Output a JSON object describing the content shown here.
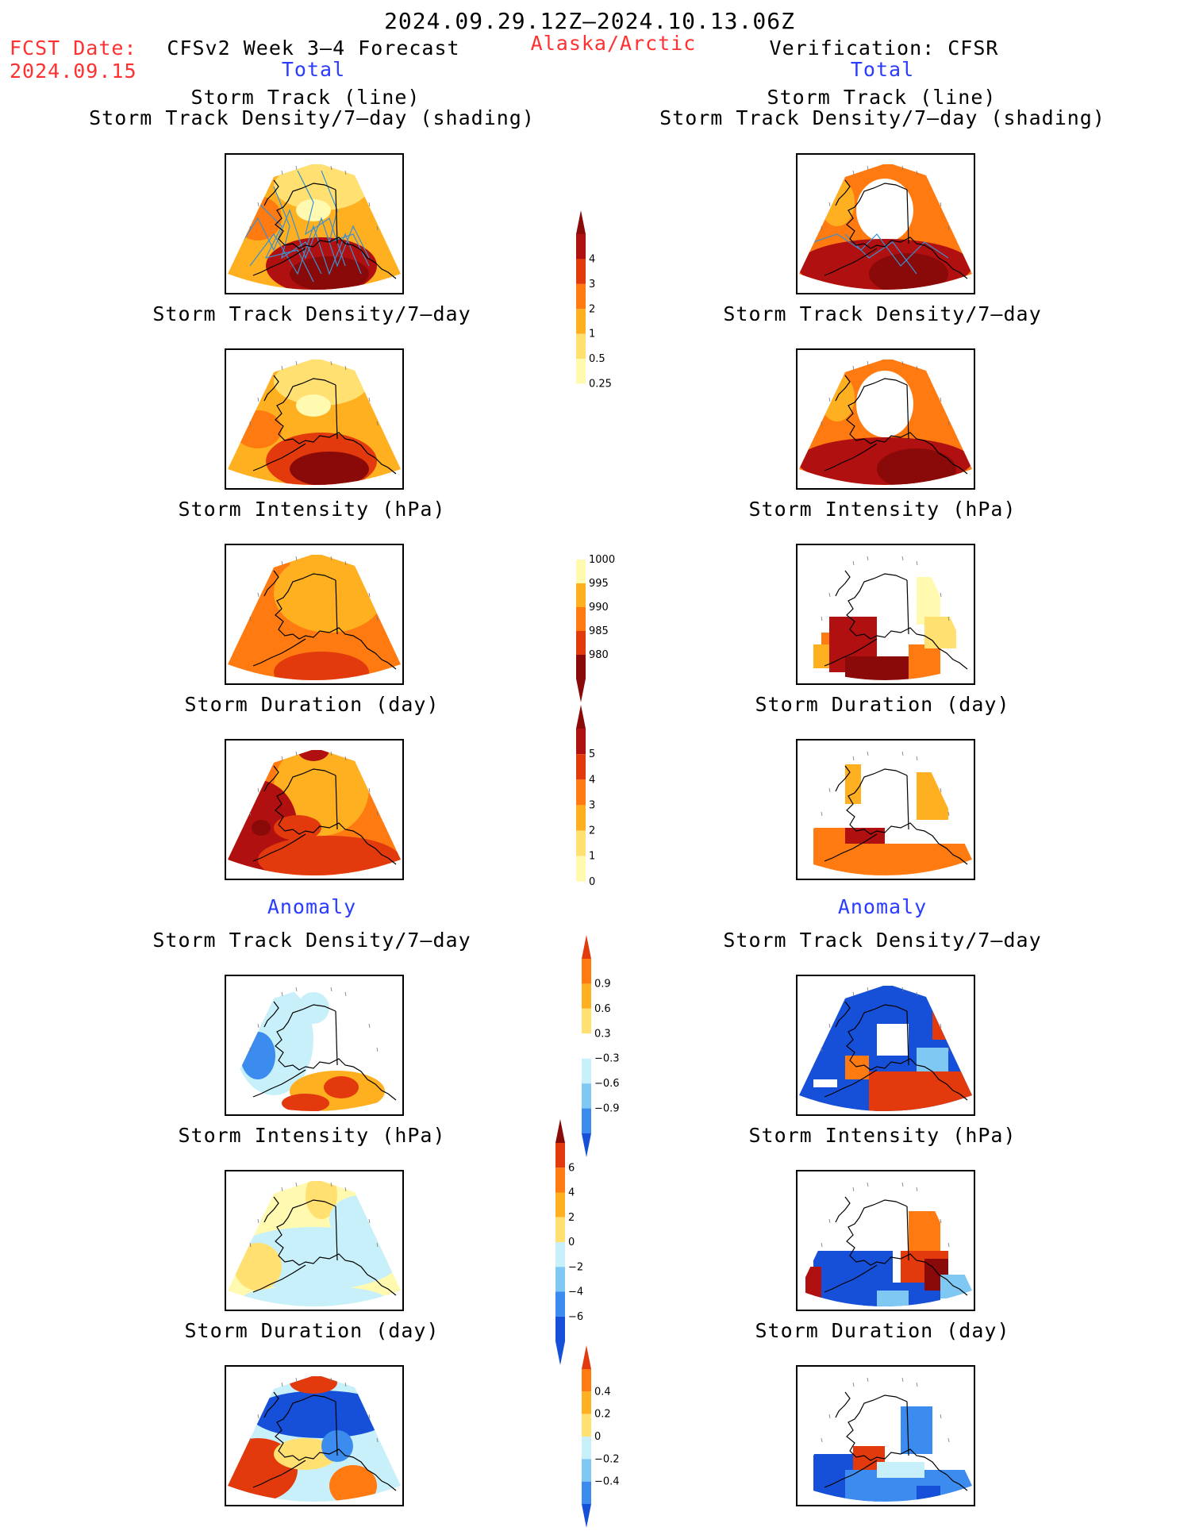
{
  "header": {
    "period": "2024.09.29.12Z–2024.10.13.06Z",
    "fcst_label": "FCST Date:",
    "fcst_date": "2024.09.15",
    "model": "CFSv2 Week 3–4 Forecast",
    "region": "Alaska/Arctic",
    "verification": "Verification: CFSR",
    "left_total": "Total",
    "right_total": "Total",
    "left_anomaly": "Anomaly",
    "right_anomaly": "Anomaly"
  },
  "titles": {
    "track_line": "Storm Track (line)",
    "track_shading": "Storm Track Density/7–day (shading)",
    "density": "Storm Track Density/7–day",
    "intensity": "Storm Intensity (hPa)",
    "duration": "Storm Duration (day)"
  },
  "colorbars": {
    "density_total": [
      "4",
      "3",
      "2",
      "1",
      "0.5",
      "0.25"
    ],
    "intensity_total": [
      "1000",
      "995",
      "990",
      "985",
      "980"
    ],
    "duration_total": [
      "5",
      "4",
      "3",
      "2",
      "1",
      "0"
    ],
    "density_anom": [
      "0.9",
      "0.6",
      "0.3",
      "−0.3",
      "−0.6",
      "−0.9"
    ],
    "intensity_anom": [
      "6",
      "4",
      "2",
      "0",
      "−2",
      "−4",
      "−6"
    ],
    "duration_anom": [
      "0.4",
      "0.2",
      "0",
      "−0.2",
      "−0.4"
    ]
  },
  "colors": {
    "warm": [
      "#fffab0",
      "#ffe070",
      "#ffb020",
      "#ff7a10",
      "#e23a0c",
      "#b01010",
      "#8a0a0a"
    ],
    "cool": [
      "#ffffff",
      "#c8f0fa",
      "#80c8f4",
      "#3c8cf0",
      "#1650d8"
    ],
    "track_line": "#3a90d0"
  }
}
